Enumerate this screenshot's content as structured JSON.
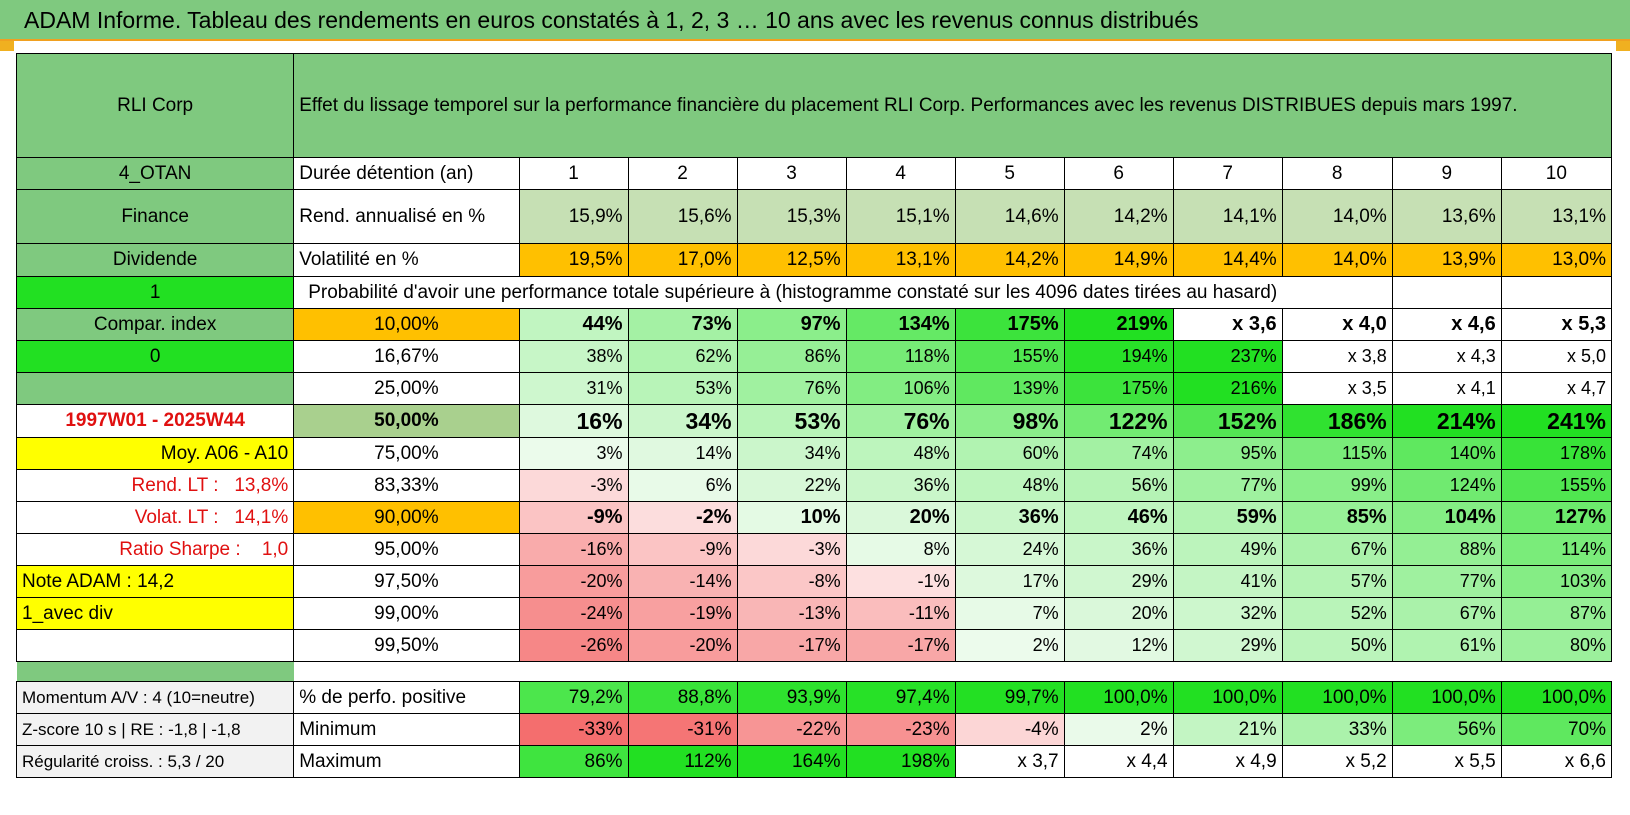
{
  "title": "ADAM Informe. Tableau des rendements en euros constatés à 1, 2, 3 … 10 ans avec les revenus connus distribués",
  "header": {
    "company": "RLI Corp",
    "description": "Effet du lissage temporel sur la performance financière du placement RLI Corp. Performances avec les revenus DISTRIBUES depuis mars 1997."
  },
  "durations_label": "Durée détention (an)",
  "durations": [
    "1",
    "2",
    "3",
    "4",
    "5",
    "6",
    "7",
    "8",
    "9",
    "10"
  ],
  "side": {
    "code": "4_OTAN",
    "sector": "Finance",
    "type": "Dividende",
    "flag1": "1",
    "compar_index": "Compar. index",
    "flag0": "0",
    "period": "1997W01 - 2025W44",
    "moy": "Moy. A06 - A10",
    "rend_lt_label": "Rend. LT :",
    "rend_lt_value": "13,8%",
    "volat_lt_label": "Volat. LT :",
    "volat_lt_value": "14,1%",
    "sharpe_label": "Ratio Sharpe :",
    "sharpe_value": "1,0",
    "note": "Note ADAM : 14,2",
    "avec_div": "1_avec div"
  },
  "rend": {
    "label": "Rend. annualisé en %",
    "values": [
      "15,9%",
      "15,6%",
      "15,3%",
      "15,1%",
      "14,6%",
      "14,2%",
      "14,1%",
      "14,0%",
      "13,6%",
      "13,1%"
    ]
  },
  "volat": {
    "label": "Volatilité en %",
    "values": [
      "19,5%",
      "17,0%",
      "12,5%",
      "13,1%",
      "14,2%",
      "14,9%",
      "14,4%",
      "14,0%",
      "13,9%",
      "13,0%"
    ]
  },
  "prob_label": "Probabilité d'avoir une performance totale supérieure à (histogramme constaté sur les 4096 dates tirées au hasard)",
  "prob_rows": [
    {
      "pct": "10,00%",
      "values": [
        "44%",
        "73%",
        "97%",
        "134%",
        "175%",
        "219%",
        "x 3,6",
        "x 4,0",
        "x 4,6",
        "x 5,3"
      ]
    },
    {
      "pct": "16,67%",
      "values": [
        "38%",
        "62%",
        "86%",
        "118%",
        "155%",
        "194%",
        "237%",
        "x 3,8",
        "x 4,3",
        "x 5,0"
      ]
    },
    {
      "pct": "25,00%",
      "values": [
        "31%",
        "53%",
        "76%",
        "106%",
        "139%",
        "175%",
        "216%",
        "x 3,5",
        "x 4,1",
        "x 4,7"
      ]
    },
    {
      "pct": "50,00%",
      "values": [
        "16%",
        "34%",
        "53%",
        "76%",
        "98%",
        "122%",
        "152%",
        "186%",
        "214%",
        "241%"
      ]
    },
    {
      "pct": "75,00%",
      "values": [
        "3%",
        "14%",
        "34%",
        "48%",
        "60%",
        "74%",
        "95%",
        "115%",
        "140%",
        "178%"
      ]
    },
    {
      "pct": "83,33%",
      "values": [
        "-3%",
        "6%",
        "22%",
        "36%",
        "48%",
        "56%",
        "77%",
        "99%",
        "124%",
        "155%"
      ]
    },
    {
      "pct": "90,00%",
      "values": [
        "-9%",
        "-2%",
        "10%",
        "20%",
        "36%",
        "46%",
        "59%",
        "85%",
        "104%",
        "127%"
      ]
    },
    {
      "pct": "95,00%",
      "values": [
        "-16%",
        "-9%",
        "-3%",
        "8%",
        "24%",
        "36%",
        "49%",
        "67%",
        "88%",
        "114%"
      ]
    },
    {
      "pct": "97,50%",
      "values": [
        "-20%",
        "-14%",
        "-8%",
        "-1%",
        "17%",
        "29%",
        "41%",
        "57%",
        "77%",
        "103%"
      ]
    },
    {
      "pct": "99,00%",
      "values": [
        "-24%",
        "-19%",
        "-13%",
        "-11%",
        "7%",
        "20%",
        "32%",
        "52%",
        "67%",
        "87%"
      ]
    },
    {
      "pct": "99,50%",
      "values": [
        "-26%",
        "-20%",
        "-17%",
        "-17%",
        "2%",
        "12%",
        "29%",
        "50%",
        "61%",
        "80%"
      ]
    }
  ],
  "footer": {
    "momentum": "Momentum A/V : 4 (10=neutre)",
    "zscore": "Z-score 10 s | RE : -1,8 | -1,8",
    "regularite": "Régularité croiss. : 5,3 / 20",
    "positive": {
      "label": "% de perfo. positive",
      "values": [
        "79,2%",
        "88,8%",
        "93,9%",
        "97,4%",
        "99,7%",
        "100,0%",
        "100,0%",
        "100,0%",
        "100,0%",
        "100,0%"
      ]
    },
    "minimum": {
      "label": "Minimum",
      "values": [
        "-33%",
        "-31%",
        "-22%",
        "-23%",
        "-4%",
        "2%",
        "21%",
        "33%",
        "56%",
        "70%"
      ]
    },
    "maximum": {
      "label": "Maximum",
      "values": [
        "86%",
        "112%",
        "164%",
        "198%",
        "x 3,7",
        "x 4,4",
        "x 4,9",
        "x 5,2",
        "x 5,5",
        "x 6,6"
      ]
    }
  },
  "colors": {
    "header_green": "#7fc97f",
    "bright_green": "#22e022",
    "orange": "#ffc000",
    "yellow": "#ffff00",
    "red_text": "#e01010",
    "olive_green": "#a9d08e"
  }
}
